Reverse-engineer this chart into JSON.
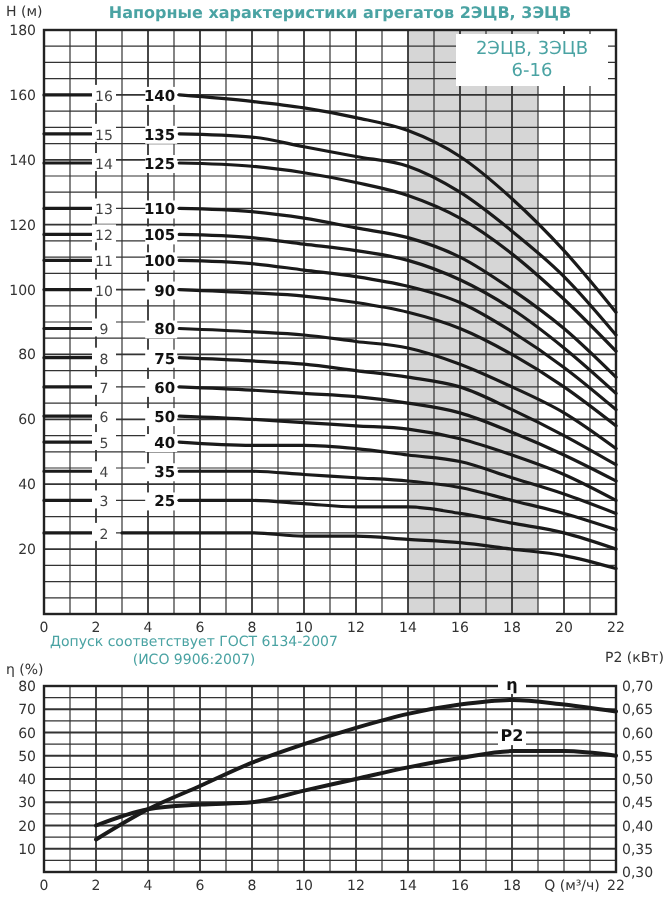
{
  "chart_data": [
    {
      "type": "line",
      "title": "Напорные характеристики агрегатов 2ЭЦВ, 3ЭЦВ",
      "subtitle": "2ЭЦВ, 3ЭЦВ 6-16",
      "ylabel": "H (м)",
      "grid": true,
      "x": [
        0,
        1.9,
        3,
        5.2,
        8,
        10,
        12,
        14,
        16,
        18,
        20,
        22
      ],
      "xlim": [
        0,
        22
      ],
      "ylim": [
        0,
        180
      ],
      "xticks": [
        0,
        {
          "value": 1,
          "label": null
        },
        2,
        {
          "value": 3,
          "label": null
        },
        4,
        {
          "value": 5,
          "label": null
        },
        6,
        {
          "value": 7,
          "label": null
        },
        8,
        {
          "value": 9,
          "label": null
        },
        10,
        {
          "value": 11,
          "label": null
        },
        12,
        {
          "value": 13,
          "label": null
        },
        14,
        {
          "value": 15,
          "label": null
        },
        16,
        {
          "value": 17,
          "label": null
        },
        18,
        {
          "value": 19,
          "label": null
        },
        20,
        {
          "value": 21,
          "label": null
        },
        22
      ],
      "yticks": [
        {
          "value": 0,
          "label": null
        },
        {
          "value": 5,
          "label": null
        },
        {
          "value": 10,
          "label": null
        },
        {
          "value": 15,
          "label": null
        },
        20,
        {
          "value": 25,
          "label": null
        },
        {
          "value": 30,
          "label": null
        },
        {
          "value": 35,
          "label": null
        },
        40,
        {
          "value": 45,
          "label": null
        },
        {
          "value": 50,
          "label": null
        },
        {
          "value": 55,
          "label": null
        },
        60,
        {
          "value": 65,
          "label": null
        },
        {
          "value": 70,
          "label": null
        },
        {
          "value": 75,
          "label": null
        },
        80,
        {
          "value": 85,
          "label": null
        },
        {
          "value": 90,
          "label": null
        },
        {
          "value": 95,
          "label": null
        },
        100,
        {
          "value": 105,
          "label": null
        },
        {
          "value": 110,
          "label": null
        },
        {
          "value": 115,
          "label": null
        },
        120,
        {
          "value": 125,
          "label": null
        },
        {
          "value": 130,
          "label": null
        },
        {
          "value": 135,
          "label": null
        },
        140,
        {
          "value": 145,
          "label": null
        },
        {
          "value": 150,
          "label": null
        },
        {
          "value": 155,
          "label": null
        },
        160,
        {
          "value": 165,
          "label": null
        },
        {
          "value": 170,
          "label": null
        },
        {
          "value": 175,
          "label": null
        },
        180
      ],
      "bands": [
        {
          "axis": "x",
          "from": 14,
          "to": 19,
          "color": "#d6d6d6"
        }
      ],
      "series": [
        {
          "color": "#1a1a1a",
          "x": [
            0,
            1.9,
            2.6,
            3,
            5.2,
            8,
            10,
            12,
            14,
            16,
            18,
            20,
            22
          ],
          "values": [
            25,
            25,
            null,
            25,
            25,
            25,
            24,
            24,
            23,
            22,
            20,
            18,
            14
          ]
        },
        {
          "name": "25",
          "color": "#1a1a1a",
          "values": [
            35,
            35,
            null,
            35,
            35,
            34,
            33,
            33,
            31,
            28,
            25,
            20
          ]
        },
        {
          "name": "35",
          "color": "#1a1a1a",
          "values": [
            44,
            44,
            null,
            44,
            44,
            43,
            42,
            41,
            39,
            35,
            31,
            26
          ]
        },
        {
          "name": "40",
          "color": "#1a1a1a",
          "values": [
            53,
            53,
            null,
            53,
            52,
            52,
            51,
            49,
            47,
            42,
            37,
            31
          ]
        },
        {
          "name": "50",
          "color": "#1a1a1a",
          "values": [
            61,
            61,
            null,
            61,
            60,
            59,
            58,
            57,
            54,
            49,
            43,
            35
          ]
        },
        {
          "name": "60",
          "color": "#1a1a1a",
          "values": [
            70,
            70,
            null,
            70,
            69,
            68,
            67,
            65,
            62,
            56,
            49,
            41
          ]
        },
        {
          "name": "75",
          "color": "#1a1a1a",
          "values": [
            79,
            79,
            null,
            79,
            78,
            77,
            75,
            73,
            70,
            63,
            55,
            46
          ]
        },
        {
          "name": "80",
          "color": "#1a1a1a",
          "values": [
            88,
            88,
            null,
            88,
            87,
            86,
            84,
            82,
            77,
            70,
            62,
            51
          ]
        },
        {
          "name": "90",
          "color": "#1a1a1a",
          "values": [
            100,
            100,
            null,
            100,
            99,
            98,
            96,
            93,
            88,
            80,
            70,
            58
          ]
        },
        {
          "name": "100",
          "color": "#1a1a1a",
          "values": [
            109,
            109,
            null,
            109,
            108,
            106,
            104,
            101,
            96,
            87,
            76,
            63
          ]
        },
        {
          "name": "105",
          "color": "#1a1a1a",
          "values": [
            117,
            117,
            null,
            117,
            116,
            114,
            112,
            109,
            103,
            94,
            82,
            68
          ]
        },
        {
          "name": "110",
          "color": "#1a1a1a",
          "values": [
            125,
            125,
            null,
            125,
            124,
            122,
            119,
            116,
            110,
            100,
            88,
            73
          ]
        },
        {
          "name": "125",
          "color": "#1a1a1a",
          "values": [
            139,
            139,
            null,
            139,
            138,
            136,
            133,
            129,
            122,
            111,
            97,
            81
          ]
        },
        {
          "name": "135",
          "color": "#1a1a1a",
          "values": [
            148,
            148,
            null,
            148,
            147,
            144,
            141,
            138,
            130,
            118,
            104,
            86
          ]
        },
        {
          "name": "140",
          "color": "#1a1a1a",
          "values": [
            160,
            160,
            null,
            160,
            158,
            156,
            153,
            149,
            141,
            128,
            112,
            93
          ]
        }
      ],
      "annotations": [
        {
          "text": "2",
          "y": 25
        },
        {
          "text": "3",
          "y": 35
        },
        {
          "text": "4",
          "y": 44
        },
        {
          "text": "5",
          "y": 53
        },
        {
          "text": "6",
          "y": 61
        },
        {
          "text": "7",
          "y": 70
        },
        {
          "text": "8",
          "y": 79
        },
        {
          "text": "9",
          "y": 88
        },
        {
          "text": "10",
          "y": 100
        },
        {
          "text": "11",
          "y": 109
        },
        {
          "text": "12",
          "y": 117
        },
        {
          "text": "13",
          "y": 125
        },
        {
          "text": "14",
          "y": 139
        },
        {
          "text": "15",
          "y": 148
        },
        {
          "text": "16",
          "y": 160
        }
      ]
    },
    {
      "type": "line",
      "xlabel": "Q (м³/ч)",
      "ylabel": "η (%)",
      "y2label": "P2 (кВт)",
      "grid": true,
      "annotations": [
        "Допуск соответствует ГОСТ 6134-2007 (ИСО 9906:2007)"
      ],
      "x": [
        2,
        4,
        6,
        8,
        10,
        12,
        14,
        16,
        18,
        20,
        22
      ],
      "xlim": [
        0,
        22
      ],
      "ylim": [
        0,
        80
      ],
      "y2lim": [
        0.3,
        0.7
      ],
      "xticks": [
        0,
        {
          "value": 1,
          "label": null
        },
        2,
        {
          "value": 3,
          "label": null
        },
        4,
        {
          "value": 5,
          "label": null
        },
        6,
        {
          "value": 7,
          "label": null
        },
        8,
        {
          "value": 9,
          "label": null
        },
        10,
        {
          "value": 11,
          "label": null
        },
        12,
        {
          "value": 13,
          "label": null
        },
        14,
        {
          "value": 15,
          "label": null
        },
        16,
        {
          "value": 17,
          "label": null
        },
        18,
        {
          "value": 19,
          "label": null
        },
        {
          "value": 20,
          "label": null
        },
        {
          "value": 21,
          "label": null
        },
        22
      ],
      "yticks": [
        {
          "value": 0,
          "label": null
        },
        {
          "value": 5,
          "label": null
        },
        10,
        {
          "value": 15,
          "label": null
        },
        20,
        {
          "value": 25,
          "label": null
        },
        30,
        {
          "value": 35,
          "label": null
        },
        40,
        {
          "value": 45,
          "label": null
        },
        50,
        {
          "value": 55,
          "label": null
        },
        60,
        {
          "value": 65,
          "label": null
        },
        70,
        {
          "value": 75,
          "label": null
        },
        80
      ],
      "y2ticks": [
        {
          "value": 0.3,
          "label": "0,30"
        },
        {
          "value": 0.35,
          "label": "0,35"
        },
        {
          "value": 0.4,
          "label": "0,40"
        },
        {
          "value": 0.45,
          "label": "0,45"
        },
        {
          "value": 0.5,
          "label": "0,50"
        },
        {
          "value": 0.55,
          "label": "0,55"
        },
        {
          "value": 0.6,
          "label": "0,60"
        },
        {
          "value": 0.65,
          "label": "0,65"
        },
        {
          "value": 0.7,
          "label": "0,70"
        }
      ],
      "series": [
        {
          "name": "η",
          "color": "#1a1a1a",
          "values": [
            14,
            27,
            37,
            47,
            55,
            62,
            68,
            72,
            74,
            72,
            69
          ]
        },
        {
          "name": "P2",
          "color": "#1a1a1a",
          "axis": "y2",
          "values": [
            0.4,
            0.435,
            0.445,
            0.45,
            0.475,
            0.5,
            0.525,
            0.545,
            0.56,
            0.56,
            0.55
          ]
        }
      ]
    }
  ]
}
